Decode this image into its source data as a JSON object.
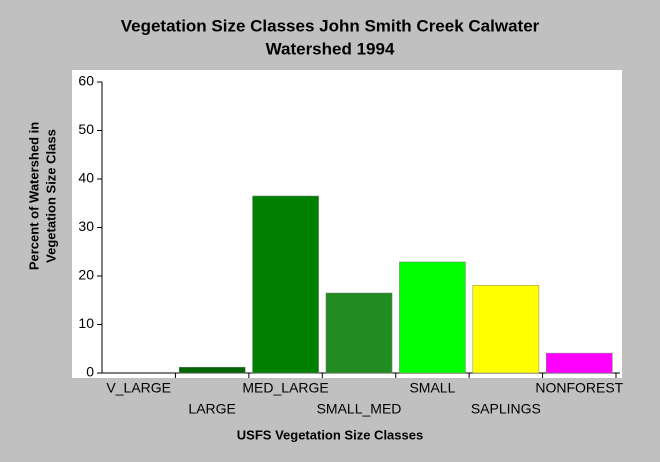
{
  "chart_data": {
    "type": "bar",
    "title": [
      "Vegetation Size Classes John Smith Creek Calwater",
      "Watershed 1994"
    ],
    "y_label": [
      "Percent of Watershed in",
      "Vegetation Size Class"
    ],
    "x_label": "USFS Vegetation Size Classes",
    "categories": [
      "V_LARGE",
      "LARGE",
      "MED_LARGE",
      "SMALL_MED",
      "SMALL",
      "SAPLINGS",
      "NONFOREST"
    ],
    "values": [
      0,
      1.2,
      36.5,
      16.5,
      22.9,
      18.1,
      4.1
    ],
    "colors": [
      "#006400",
      "#006400",
      "#008000",
      "#228b22",
      "#00ff00",
      "#ffff00",
      "#ff00ff"
    ],
    "ylim": [
      0,
      60
    ],
    "yticks": [
      0,
      10,
      20,
      30,
      40,
      50,
      60
    ],
    "grid": false
  }
}
